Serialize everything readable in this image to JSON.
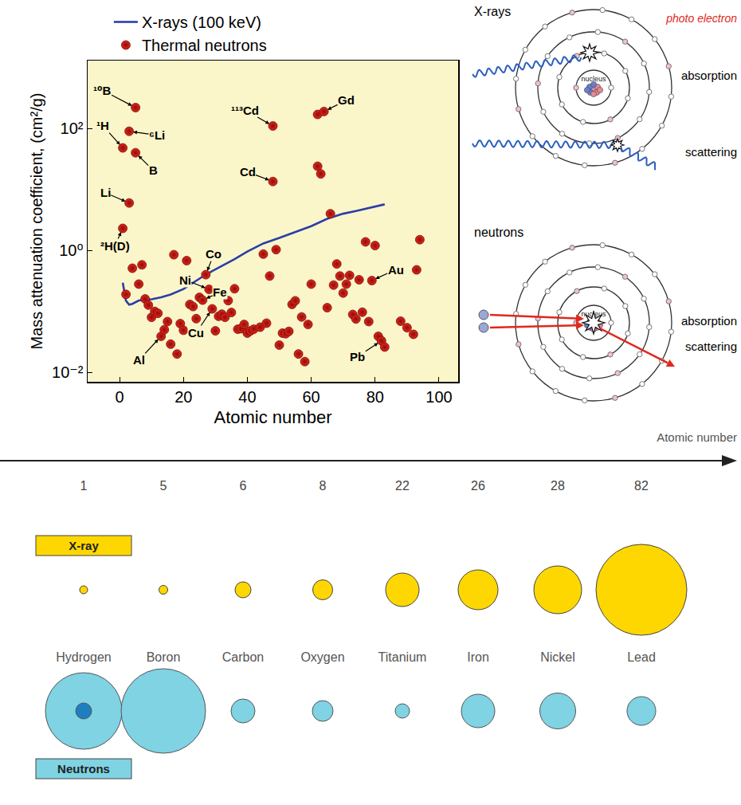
{
  "chart_data": {
    "type": "scatter",
    "x_label": "Atomic number",
    "y_label": "Mass attenuation coefficient, (cm²/g)",
    "xlim": [
      -10,
      106
    ],
    "xticks": [
      0,
      20,
      40,
      60,
      80,
      100
    ],
    "ylim": [
      0.007,
      1300
    ],
    "yticks": [
      {
        "value": 0.01,
        "label": "10⁻²"
      },
      {
        "value": 1,
        "label": "10⁰"
      },
      {
        "value": 100,
        "label": "10²"
      }
    ],
    "log": "y",
    "grid": false,
    "legend": "top left",
    "series": [
      {
        "name": "X-rays (100 keV)",
        "type": "line",
        "color": "#2b3fa8",
        "line_style": "solid",
        "x": [
          1,
          2,
          3,
          4,
          6,
          8,
          10,
          13,
          16,
          20,
          24,
          26,
          29,
          32,
          36,
          40,
          45,
          50,
          55,
          60,
          65,
          70,
          74,
          79,
          82,
          83
        ],
        "values": [
          0.294,
          0.149,
          0.129,
          0.133,
          0.151,
          0.155,
          0.158,
          0.17,
          0.189,
          0.233,
          0.319,
          0.372,
          0.458,
          0.555,
          0.72,
          0.96,
          1.3,
          1.6,
          2.0,
          2.5,
          3.3,
          4.0,
          4.44,
          5.16,
          5.55,
          5.7
        ]
      },
      {
        "name": "Thermal neutrons",
        "type": "scatter",
        "color": "#e0281e",
        "marker": "circle",
        "x": [
          1,
          1,
          2,
          3,
          3,
          4,
          5,
          5,
          6,
          7,
          8,
          9,
          10,
          11,
          12,
          13,
          14,
          15,
          16,
          17,
          18,
          19,
          20,
          21,
          22,
          23,
          24,
          25,
          26,
          27,
          28,
          29,
          30,
          31,
          32,
          33,
          34,
          35,
          36,
          37,
          38,
          39,
          40,
          41,
          42,
          44,
          45,
          46,
          47,
          48,
          48,
          49,
          50,
          51,
          52,
          53,
          54,
          55,
          56,
          57,
          58,
          59,
          60,
          62,
          62,
          63,
          64,
          65,
          66,
          67,
          68,
          69,
          70,
          71,
          72,
          73,
          74,
          75,
          76,
          77,
          78,
          79,
          80,
          81,
          82,
          83,
          88,
          90,
          92,
          93,
          94
        ],
        "values": [
          48,
          2.3,
          0.19,
          6,
          90,
          0.51,
          40,
          220,
          0.28,
          0.58,
          0.16,
          0.127,
          0.08,
          0.1,
          0.093,
          0.039,
          0.05,
          0.068,
          0.029,
          0.85,
          0.02,
          0.063,
          0.049,
          0.68,
          0.13,
          0.12,
          0.076,
          0.17,
          0.153,
          0.4,
          0.23,
          0.11,
          0.048,
          0.083,
          0.09,
          0.08,
          0.15,
          0.096,
          0.235,
          0.051,
          0.052,
          0.061,
          0.044,
          0.048,
          0.051,
          0.055,
          0.87,
          0.064,
          0.38,
          13.5,
          110,
          1.03,
          0.028,
          0.044,
          0.043,
          0.047,
          0.13,
          0.149,
          0.02,
          0.081,
          0.015,
          0.061,
          0.28,
          24,
          170,
          18,
          190,
          0.115,
          4,
          0.27,
          0.6,
          0.38,
          0.2,
          0.28,
          0.39,
          0.089,
          0.075,
          0.33,
          0.097,
          1.38,
          0.068,
          0.32,
          1.2,
          0.039,
          0.033,
          0.026,
          0.069,
          0.054,
          0.042,
          0.48,
          1.5
        ]
      }
    ],
    "annotations": [
      {
        "text": "¹⁰B",
        "x": 5,
        "y": 220
      },
      {
        "text": "¹H",
        "x": 1,
        "y": 48
      },
      {
        "text": "⁶Li",
        "x": 3,
        "y": 90
      },
      {
        "text": "B",
        "x": 5,
        "y": 40
      },
      {
        "text": "Li",
        "x": 3,
        "y": 6
      },
      {
        "text": "²H(D)",
        "x": 1,
        "y": 2.3
      },
      {
        "text": "¹¹³Cd",
        "x": 48,
        "y": 110
      },
      {
        "text": "Cd",
        "x": 48,
        "y": 13.5
      },
      {
        "text": "Gd",
        "x": 64,
        "y": 190
      },
      {
        "text": "Co",
        "x": 27,
        "y": 0.4
      },
      {
        "text": "Ni",
        "x": 28,
        "y": 0.23
      },
      {
        "text": "Fe",
        "x": 26,
        "y": 0.153
      },
      {
        "text": "Cu",
        "x": 29,
        "y": 0.11
      },
      {
        "text": "Al",
        "x": 13,
        "y": 0.039
      },
      {
        "text": "Au",
        "x": 79,
        "y": 0.32
      },
      {
        "text": "Pb",
        "x": 82,
        "y": 0.033
      }
    ]
  },
  "diagrams": [
    {
      "title": "X-rays",
      "nucleus": "nucleus",
      "labels": {
        "photo_electron": "photo electron",
        "absorption": "absorption",
        "scattering": "scattering"
      }
    },
    {
      "title": "neutrons",
      "nucleus": "nucleus",
      "labels": {
        "absorption": "absorption",
        "scattering": "scattering"
      }
    }
  ],
  "comparison": {
    "axis_label": "Atomic number",
    "atomic_numbers": [
      1,
      5,
      6,
      8,
      22,
      26,
      28,
      82
    ],
    "elements": [
      "Hydrogen",
      "Boron",
      "Carbon",
      "Oxygen",
      "Titanium",
      "Iron",
      "Nickel",
      "Lead"
    ],
    "xray": {
      "label": "X-ray",
      "color": "#ffd700",
      "sizes": [
        10,
        11,
        20,
        25,
        42,
        50,
        60,
        114
      ]
    },
    "neutrons": {
      "label": "Neutrons",
      "color": "#7fd3e3",
      "sizes": [
        96,
        106,
        30,
        26,
        18,
        42,
        45,
        36
      ],
      "inner_sizes": [
        20,
        null,
        null,
        null,
        null,
        null,
        null,
        null
      ]
    }
  }
}
